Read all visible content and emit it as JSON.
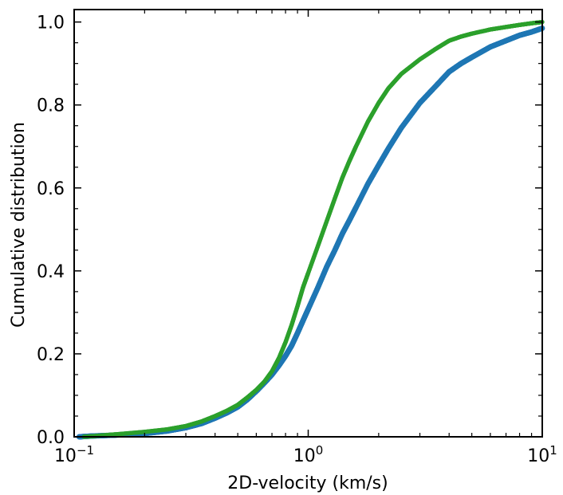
{
  "chart_data": {
    "type": "scatter",
    "title": "",
    "xlabel": "2D-velocity (km/s)",
    "ylabel": "Cumulative distribution",
    "xscale": "log",
    "xlim": [
      0.1,
      10
    ],
    "ylim": [
      0,
      1.03
    ],
    "x_ticks": [
      {
        "base": "10",
        "exp": "−1",
        "value": 0.1
      },
      {
        "base": "10",
        "exp": "0",
        "value": 1
      },
      {
        "base": "10",
        "exp": "1",
        "value": 10
      }
    ],
    "y_ticks": [
      "0.0",
      "0.2",
      "0.4",
      "0.6",
      "0.8",
      "1.0"
    ],
    "grid": false,
    "series": [
      {
        "name": "blue",
        "color": "#1f77b4",
        "points": [
          [
            0.105,
            0.0
          ],
          [
            0.12,
            0.002
          ],
          [
            0.15,
            0.004
          ],
          [
            0.2,
            0.008
          ],
          [
            0.25,
            0.014
          ],
          [
            0.3,
            0.022
          ],
          [
            0.35,
            0.032
          ],
          [
            0.4,
            0.045
          ],
          [
            0.45,
            0.058
          ],
          [
            0.5,
            0.072
          ],
          [
            0.55,
            0.09
          ],
          [
            0.6,
            0.11
          ],
          [
            0.65,
            0.13
          ],
          [
            0.7,
            0.15
          ],
          [
            0.75,
            0.172
          ],
          [
            0.8,
            0.195
          ],
          [
            0.85,
            0.22
          ],
          [
            0.9,
            0.25
          ],
          [
            0.95,
            0.28
          ],
          [
            1.0,
            0.308
          ],
          [
            1.1,
            0.36
          ],
          [
            1.2,
            0.41
          ],
          [
            1.3,
            0.45
          ],
          [
            1.4,
            0.49
          ],
          [
            1.5,
            0.522
          ],
          [
            1.6,
            0.553
          ],
          [
            1.8,
            0.61
          ],
          [
            2.0,
            0.655
          ],
          [
            2.2,
            0.695
          ],
          [
            2.5,
            0.745
          ],
          [
            3.0,
            0.805
          ],
          [
            3.5,
            0.845
          ],
          [
            4.0,
            0.88
          ],
          [
            4.5,
            0.9
          ],
          [
            5.0,
            0.915
          ],
          [
            6.0,
            0.94
          ],
          [
            7.0,
            0.955
          ],
          [
            8.0,
            0.968
          ],
          [
            9.0,
            0.976
          ],
          [
            10.0,
            0.985
          ]
        ]
      },
      {
        "name": "green",
        "color": "#2ca02c",
        "points": [
          [
            0.11,
            0.0
          ],
          [
            0.13,
            0.003
          ],
          [
            0.15,
            0.006
          ],
          [
            0.2,
            0.012
          ],
          [
            0.25,
            0.018
          ],
          [
            0.3,
            0.026
          ],
          [
            0.35,
            0.037
          ],
          [
            0.4,
            0.05
          ],
          [
            0.45,
            0.063
          ],
          [
            0.5,
            0.077
          ],
          [
            0.55,
            0.095
          ],
          [
            0.6,
            0.113
          ],
          [
            0.65,
            0.133
          ],
          [
            0.7,
            0.158
          ],
          [
            0.75,
            0.19
          ],
          [
            0.8,
            0.228
          ],
          [
            0.85,
            0.27
          ],
          [
            0.9,
            0.315
          ],
          [
            0.95,
            0.36
          ],
          [
            1.0,
            0.395
          ],
          [
            1.1,
            0.46
          ],
          [
            1.2,
            0.52
          ],
          [
            1.3,
            0.575
          ],
          [
            1.4,
            0.625
          ],
          [
            1.5,
            0.665
          ],
          [
            1.6,
            0.7
          ],
          [
            1.8,
            0.76
          ],
          [
            2.0,
            0.805
          ],
          [
            2.2,
            0.84
          ],
          [
            2.5,
            0.875
          ],
          [
            3.0,
            0.91
          ],
          [
            3.5,
            0.935
          ],
          [
            4.0,
            0.955
          ],
          [
            4.5,
            0.965
          ],
          [
            5.0,
            0.972
          ],
          [
            6.0,
            0.982
          ],
          [
            7.0,
            0.988
          ],
          [
            8.0,
            0.993
          ],
          [
            9.0,
            0.997
          ],
          [
            10.0,
            1.0
          ]
        ]
      }
    ]
  }
}
